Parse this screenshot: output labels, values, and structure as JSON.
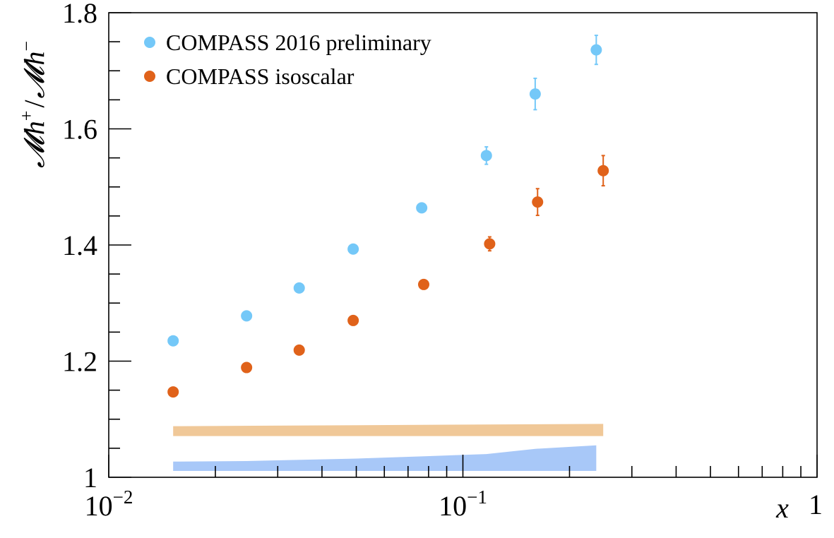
{
  "chart_data": {
    "type": "scatter",
    "xscale": "log",
    "xlim": [
      0.01,
      1
    ],
    "ylim": [
      1.0,
      1.8
    ],
    "xlabel": "x",
    "ylabel": {
      "m": "𝓜",
      "h": "h",
      "plus": "+",
      "slash": "/",
      "minus": "−"
    },
    "yticks": [
      1.0,
      1.2,
      1.4,
      1.6,
      1.8
    ],
    "ytick_labels": [
      "1",
      "1.2",
      "1.4",
      "1.6",
      "1.8"
    ],
    "xticks": [
      0.01,
      0.1,
      1
    ],
    "xtick_labels": [
      {
        "base": "10",
        "exp": "−2"
      },
      {
        "base": "10",
        "exp": "−1"
      },
      {
        "base": "1",
        "exp": ""
      }
    ],
    "legend_position": "top-left",
    "series": [
      {
        "name": "COMPASS 2016 preliminary",
        "color": "#74C8F8",
        "points": [
          {
            "x": 0.0152,
            "y": 1.235,
            "err": 0.004
          },
          {
            "x": 0.0245,
            "y": 1.278,
            "err": 0.004
          },
          {
            "x": 0.0345,
            "y": 1.326,
            "err": 0.004
          },
          {
            "x": 0.049,
            "y": 1.393,
            "err": 0.005
          },
          {
            "x": 0.0765,
            "y": 1.464,
            "err": 0.006
          },
          {
            "x": 0.1165,
            "y": 1.554,
            "err": 0.015
          },
          {
            "x": 0.16,
            "y": 1.66,
            "err": 0.027
          },
          {
            "x": 0.238,
            "y": 1.736,
            "err": 0.025
          }
        ]
      },
      {
        "name": "COMPASS isoscalar",
        "color": "#E0621A",
        "points": [
          {
            "x": 0.0152,
            "y": 1.147,
            "err": 0.004
          },
          {
            "x": 0.0245,
            "y": 1.189,
            "err": 0.004
          },
          {
            "x": 0.0345,
            "y": 1.219,
            "err": 0.004
          },
          {
            "x": 0.049,
            "y": 1.27,
            "err": 0.005
          },
          {
            "x": 0.0775,
            "y": 1.332,
            "err": 0.006
          },
          {
            "x": 0.119,
            "y": 1.402,
            "err": 0.012
          },
          {
            "x": 0.1625,
            "y": 1.474,
            "err": 0.023
          },
          {
            "x": 0.249,
            "y": 1.528,
            "err": 0.026
          }
        ]
      }
    ],
    "systematic_bands": [
      {
        "color": "#F0C898",
        "points": [
          {
            "x": 0.0152,
            "lo": 1.071,
            "hi": 1.088
          },
          {
            "x": 0.249,
            "lo": 1.071,
            "hi": 1.092
          }
        ]
      },
      {
        "color": "#A8C8F8",
        "points": [
          {
            "x": 0.0152,
            "lo": 1.011,
            "hi": 1.027
          },
          {
            "x": 0.0245,
            "lo": 1.011,
            "hi": 1.028
          },
          {
            "x": 0.049,
            "lo": 1.011,
            "hi": 1.032
          },
          {
            "x": 0.0765,
            "lo": 1.011,
            "hi": 1.036
          },
          {
            "x": 0.1165,
            "lo": 1.011,
            "hi": 1.04
          },
          {
            "x": 0.16,
            "lo": 1.011,
            "hi": 1.049
          },
          {
            "x": 0.238,
            "lo": 1.011,
            "hi": 1.055
          }
        ]
      }
    ]
  }
}
